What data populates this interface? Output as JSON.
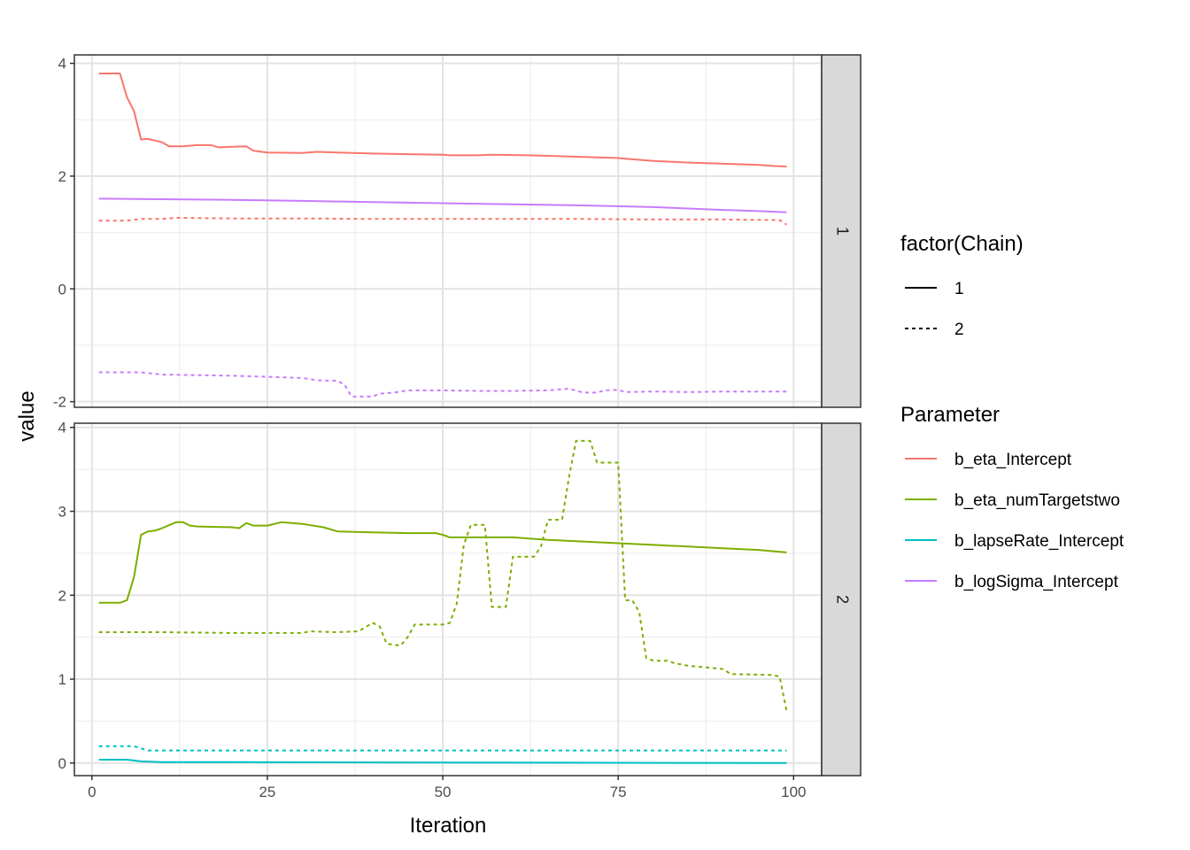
{
  "chart_data": {
    "type": "line",
    "xlabel": "Iteration",
    "ylabel": "value",
    "xlim": [
      -2.5,
      104
    ],
    "x_ticks": [
      0,
      25,
      50,
      75,
      100
    ],
    "grid": true,
    "legend_placement": "right",
    "legends": {
      "linetype": {
        "title": "factor(Chain)",
        "entries": [
          {
            "label": "1",
            "dash": "solid"
          },
          {
            "label": "2",
            "dash": "dotted"
          }
        ]
      },
      "color": {
        "title": "Parameter",
        "entries": [
          {
            "label": "b_eta_Intercept",
            "color": "#F8766D"
          },
          {
            "label": "b_eta_numTargetstwo",
            "color": "#7CAE00"
          },
          {
            "label": "b_lapseRate_Intercept",
            "color": "#00BFC4"
          },
          {
            "label": "b_logSigma_Intercept",
            "color": "#C77CFF"
          }
        ]
      }
    },
    "panels": [
      {
        "strip": "1",
        "ylim": [
          -2.1,
          4.15
        ],
        "y_ticks": [
          -2,
          0,
          2,
          4
        ],
        "series": [
          {
            "parameter": "b_eta_Intercept",
            "chain": "1",
            "color": "#F8766D",
            "points": [
              [
                1,
                3.82
              ],
              [
                4,
                3.82
              ],
              [
                5,
                3.4
              ],
              [
                6,
                3.15
              ],
              [
                7,
                2.65
              ],
              [
                8,
                2.66
              ],
              [
                10,
                2.6
              ],
              [
                11,
                2.53
              ],
              [
                13,
                2.53
              ],
              [
                15,
                2.55
              ],
              [
                17,
                2.55
              ],
              [
                18,
                2.51
              ],
              [
                20,
                2.52
              ],
              [
                22,
                2.53
              ],
              [
                23,
                2.45
              ],
              [
                25,
                2.42
              ],
              [
                30,
                2.41
              ],
              [
                32,
                2.43
              ],
              [
                35,
                2.42
              ],
              [
                40,
                2.4
              ],
              [
                45,
                2.39
              ],
              [
                50,
                2.38
              ],
              [
                51,
                2.37
              ],
              [
                55,
                2.37
              ],
              [
                57,
                2.38
              ],
              [
                62,
                2.37
              ],
              [
                65,
                2.36
              ],
              [
                70,
                2.34
              ],
              [
                75,
                2.32
              ],
              [
                76,
                2.31
              ],
              [
                80,
                2.27
              ],
              [
                85,
                2.24
              ],
              [
                90,
                2.22
              ],
              [
                95,
                2.2
              ],
              [
                97,
                2.18
              ],
              [
                99,
                2.17
              ]
            ]
          },
          {
            "parameter": "b_eta_Intercept",
            "chain": "2",
            "color": "#F8766D",
            "points": [
              [
                1,
                1.21
              ],
              [
                5,
                1.21
              ],
              [
                7,
                1.24
              ],
              [
                10,
                1.24
              ],
              [
                12,
                1.26
              ],
              [
                20,
                1.25
              ],
              [
                30,
                1.25
              ],
              [
                40,
                1.24
              ],
              [
                50,
                1.24
              ],
              [
                60,
                1.24
              ],
              [
                70,
                1.24
              ],
              [
                80,
                1.23
              ],
              [
                90,
                1.23
              ],
              [
                98,
                1.22
              ],
              [
                99,
                1.14
              ]
            ]
          },
          {
            "parameter": "b_logSigma_Intercept",
            "chain": "1",
            "color": "#C77CFF",
            "points": [
              [
                1,
                1.6
              ],
              [
                10,
                1.59
              ],
              [
                20,
                1.58
              ],
              [
                30,
                1.56
              ],
              [
                40,
                1.54
              ],
              [
                50,
                1.52
              ],
              [
                60,
                1.5
              ],
              [
                70,
                1.48
              ],
              [
                80,
                1.45
              ],
              [
                90,
                1.4
              ],
              [
                95,
                1.38
              ],
              [
                99,
                1.36
              ]
            ]
          },
          {
            "parameter": "b_logSigma_Intercept",
            "chain": "2",
            "color": "#C77CFF",
            "points": [
              [
                1,
                -1.48
              ],
              [
                7,
                -1.48
              ],
              [
                10,
                -1.52
              ],
              [
                20,
                -1.54
              ],
              [
                30,
                -1.58
              ],
              [
                32,
                -1.62
              ],
              [
                35,
                -1.63
              ],
              [
                36,
                -1.7
              ],
              [
                37,
                -1.91
              ],
              [
                40,
                -1.91
              ],
              [
                41,
                -1.86
              ],
              [
                43,
                -1.84
              ],
              [
                45,
                -1.8
              ],
              [
                50,
                -1.8
              ],
              [
                55,
                -1.81
              ],
              [
                60,
                -1.81
              ],
              [
                65,
                -1.8
              ],
              [
                68,
                -1.77
              ],
              [
                70,
                -1.84
              ],
              [
                72,
                -1.84
              ],
              [
                73,
                -1.8
              ],
              [
                75,
                -1.79
              ],
              [
                76,
                -1.83
              ],
              [
                80,
                -1.82
              ],
              [
                85,
                -1.83
              ],
              [
                90,
                -1.82
              ],
              [
                99,
                -1.82
              ]
            ]
          }
        ]
      },
      {
        "strip": "2",
        "ylim": [
          -0.15,
          4.05
        ],
        "y_ticks": [
          0,
          1,
          2,
          3,
          4
        ],
        "series": [
          {
            "parameter": "b_eta_numTargetstwo",
            "chain": "1",
            "color": "#7CAE00",
            "points": [
              [
                1,
                1.91
              ],
              [
                4,
                1.91
              ],
              [
                5,
                1.94
              ],
              [
                6,
                2.22
              ],
              [
                7,
                2.72
              ],
              [
                8,
                2.76
              ],
              [
                9,
                2.77
              ],
              [
                10,
                2.8
              ],
              [
                12,
                2.87
              ],
              [
                13,
                2.87
              ],
              [
                14,
                2.83
              ],
              [
                15,
                2.82
              ],
              [
                20,
                2.81
              ],
              [
                21,
                2.8
              ],
              [
                22,
                2.86
              ],
              [
                23,
                2.83
              ],
              [
                25,
                2.83
              ],
              [
                27,
                2.87
              ],
              [
                30,
                2.85
              ],
              [
                33,
                2.81
              ],
              [
                35,
                2.76
              ],
              [
                40,
                2.75
              ],
              [
                45,
                2.74
              ],
              [
                49,
                2.74
              ],
              [
                50,
                2.72
              ],
              [
                51,
                2.69
              ],
              [
                60,
                2.69
              ],
              [
                65,
                2.66
              ],
              [
                70,
                2.64
              ],
              [
                75,
                2.62
              ],
              [
                80,
                2.6
              ],
              [
                85,
                2.58
              ],
              [
                90,
                2.56
              ],
              [
                95,
                2.54
              ],
              [
                99,
                2.51
              ]
            ]
          },
          {
            "parameter": "b_eta_numTargetstwo",
            "chain": "2",
            "color": "#7CAE00",
            "points": [
              [
                1,
                1.56
              ],
              [
                10,
                1.56
              ],
              [
                20,
                1.55
              ],
              [
                30,
                1.55
              ],
              [
                31,
                1.57
              ],
              [
                35,
                1.56
              ],
              [
                38,
                1.57
              ],
              [
                40,
                1.67
              ],
              [
                41,
                1.63
              ],
              [
                42,
                1.42
              ],
              [
                44,
                1.4
              ],
              [
                45,
                1.5
              ],
              [
                46,
                1.65
              ],
              [
                50,
                1.65
              ],
              [
                51,
                1.67
              ],
              [
                52,
                1.9
              ],
              [
                53,
                2.6
              ],
              [
                54,
                2.84
              ],
              [
                56,
                2.84
              ],
              [
                57,
                1.86
              ],
              [
                59,
                1.86
              ],
              [
                60,
                2.46
              ],
              [
                63,
                2.46
              ],
              [
                64,
                2.58
              ],
              [
                65,
                2.9
              ],
              [
                67,
                2.9
              ],
              [
                68,
                3.41
              ],
              [
                69,
                3.84
              ],
              [
                71,
                3.84
              ],
              [
                72,
                3.58
              ],
              [
                75,
                3.58
              ],
              [
                76,
                1.94
              ],
              [
                77,
                1.94
              ],
              [
                78,
                1.8
              ],
              [
                79,
                1.25
              ],
              [
                80,
                1.22
              ],
              [
                82,
                1.22
              ],
              [
                83,
                1.19
              ],
              [
                85,
                1.16
              ],
              [
                90,
                1.12
              ],
              [
                91,
                1.06
              ],
              [
                97,
                1.05
              ],
              [
                98,
                1.03
              ],
              [
                99,
                0.62
              ]
            ]
          },
          {
            "parameter": "b_lapseRate_Intercept",
            "chain": "1",
            "color": "#00BFC4",
            "points": [
              [
                1,
                0.04
              ],
              [
                5,
                0.04
              ],
              [
                7,
                0.02
              ],
              [
                10,
                0.01
              ],
              [
                20,
                0.01
              ],
              [
                99,
                0.0
              ]
            ]
          },
          {
            "parameter": "b_lapseRate_Intercept",
            "chain": "2",
            "color": "#00BFC4",
            "points": [
              [
                1,
                0.2
              ],
              [
                6,
                0.2
              ],
              [
                8,
                0.15
              ],
              [
                99,
                0.15
              ]
            ]
          }
        ]
      }
    ]
  }
}
